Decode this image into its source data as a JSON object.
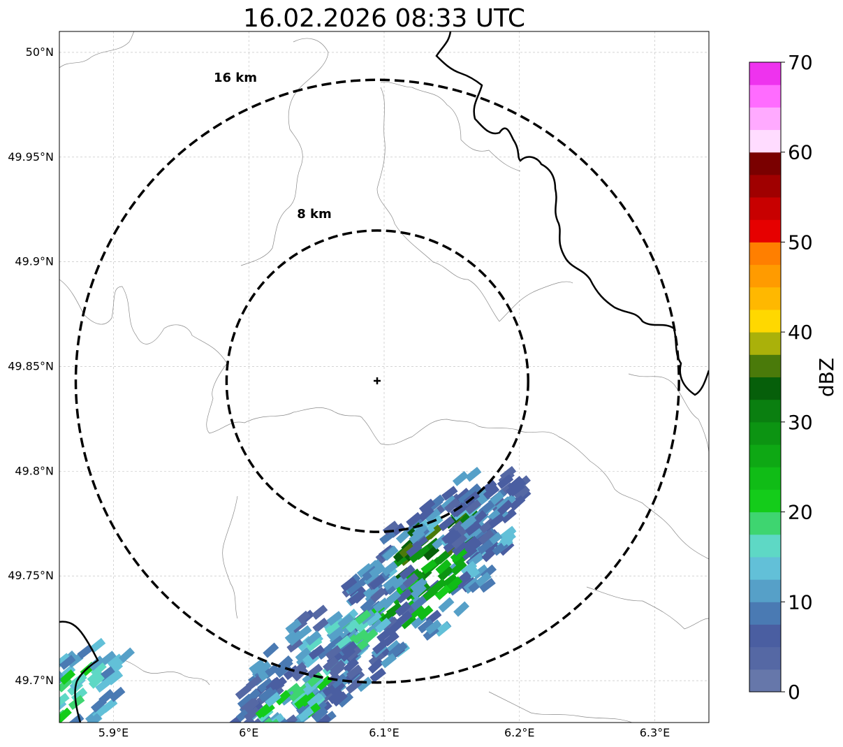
{
  "title": "16.02.2026 08:33 UTC",
  "map": {
    "lon_range": [
      5.86,
      6.34
    ],
    "lat_range": [
      49.68,
      50.01
    ],
    "lon_ticks": [
      {
        "value": 5.9,
        "label": "5.9°E"
      },
      {
        "value": 6.0,
        "label": "6°E"
      },
      {
        "value": 6.1,
        "label": "6.1°E"
      },
      {
        "value": 6.2,
        "label": "6.2°E"
      },
      {
        "value": 6.3,
        "label": "6.3°E"
      }
    ],
    "lat_ticks": [
      {
        "value": 50.0,
        "label": "50°N"
      },
      {
        "value": 49.95,
        "label": "49.95°N"
      },
      {
        "value": 49.9,
        "label": "49.9°N"
      },
      {
        "value": 49.85,
        "label": "49.85°N"
      },
      {
        "value": 49.8,
        "label": "49.8°N"
      },
      {
        "value": 49.75,
        "label": "49.75°N"
      },
      {
        "value": 49.7,
        "label": "49.7°N"
      }
    ],
    "gridlines": true,
    "radar_site": {
      "lon": 6.095,
      "lat": 49.843,
      "symbol": "plus"
    },
    "range_rings": [
      {
        "radius_km": 8,
        "label": "8 km"
      },
      {
        "radius_km": 16,
        "label": "16 km"
      }
    ]
  },
  "colorbar": {
    "label": "dBZ",
    "min": 0,
    "max": 70,
    "tick_labels": [
      "0",
      "10",
      "20",
      "30",
      "40",
      "50",
      "60",
      "70"
    ],
    "colors": [
      "#6677aa",
      "#5568a4",
      "#4a5ea1",
      "#4a7ab3",
      "#56a0c8",
      "#62c0d8",
      "#5ed8c5",
      "#3ed570",
      "#14cc1a",
      "#10bc16",
      "#0ea814",
      "#0c9412",
      "#0a7f10",
      "#065f0a",
      "#4a7a0a",
      "#aab10a",
      "#ffd800",
      "#ffb800",
      "#ff9b00",
      "#ff7f00",
      "#e60000",
      "#c80000",
      "#a00000",
      "#7a0000",
      "#ffdcff",
      "#ffaaff",
      "#ff6cff",
      "#ee33ee"
    ]
  },
  "colors": {
    "rings": "#000000",
    "border": "#000000",
    "admin_lines": "#888888",
    "grid": "#bbbbbb"
  }
}
